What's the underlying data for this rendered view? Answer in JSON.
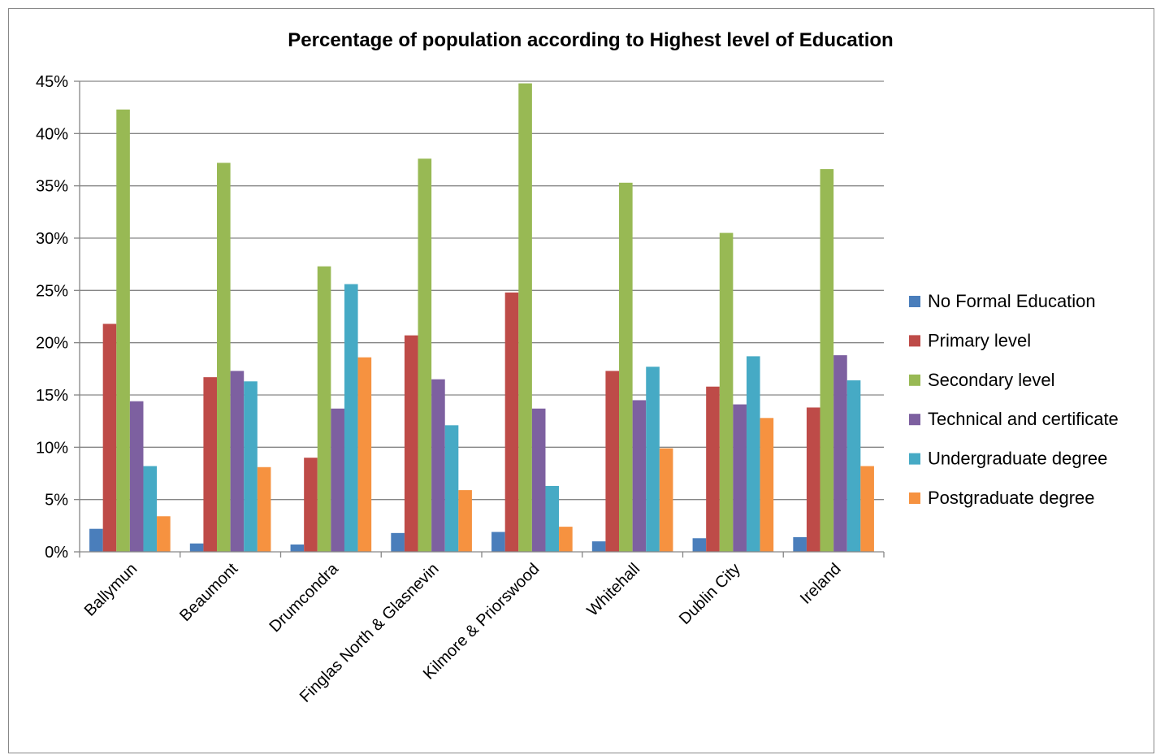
{
  "chart_data": {
    "type": "bar",
    "title": "Percentage of population according to Highest level of Education",
    "xlabel": "",
    "ylabel": "",
    "ylim": [
      0,
      45
    ],
    "y_ticks": [
      0,
      5,
      10,
      15,
      20,
      25,
      30,
      35,
      40,
      45
    ],
    "y_tick_format": "percent",
    "grid": true,
    "legend_position": "right",
    "categories": [
      "Ballymun",
      "Beaumont",
      "Drumcondra",
      "Finglas North & Glasnevin",
      "Kilmore & Priorswood",
      "Whitehall",
      "Dublin City",
      "Ireland"
    ],
    "series": [
      {
        "name": "No Formal Education",
        "color": "#4a7ebb",
        "values": [
          2.2,
          0.8,
          0.7,
          1.8,
          1.9,
          1.0,
          1.3,
          1.4
        ]
      },
      {
        "name": "Primary level",
        "color": "#be4b48",
        "values": [
          21.8,
          16.7,
          9.0,
          20.7,
          24.8,
          17.3,
          15.8,
          13.8
        ]
      },
      {
        "name": "Secondary level",
        "color": "#98b954",
        "values": [
          42.3,
          37.2,
          27.3,
          37.6,
          44.8,
          35.3,
          30.5,
          36.6
        ]
      },
      {
        "name": "Technical and certificate",
        "color": "#7d60a0",
        "values": [
          14.4,
          17.3,
          13.7,
          16.5,
          13.7,
          14.5,
          14.1,
          18.8
        ]
      },
      {
        "name": "Undergraduate degree",
        "color": "#46aac5",
        "values": [
          8.2,
          16.3,
          25.6,
          12.1,
          6.3,
          17.7,
          18.7,
          16.4
        ]
      },
      {
        "name": "Postgraduate degree",
        "color": "#f69240",
        "values": [
          3.4,
          8.1,
          18.6,
          5.9,
          2.4,
          9.9,
          12.8,
          8.2
        ]
      }
    ]
  }
}
